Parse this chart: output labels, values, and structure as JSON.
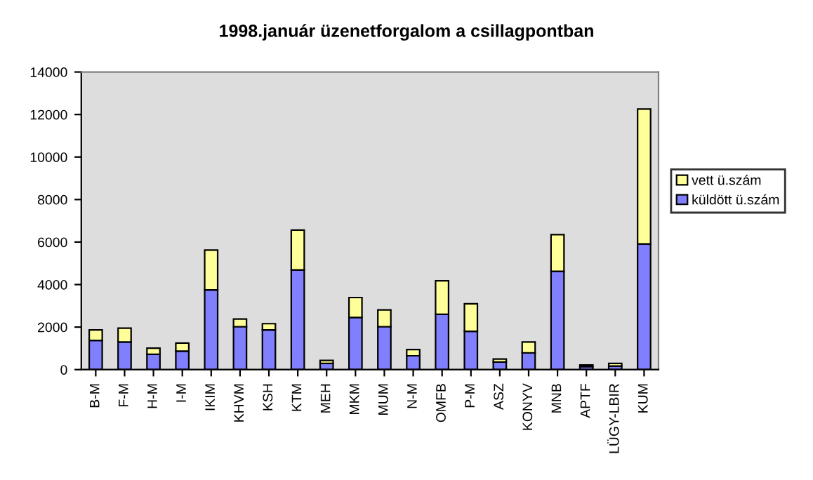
{
  "chart_data": {
    "type": "bar",
    "title": "1998.január üzenetforgalom a csillagpontban",
    "stacked": true,
    "legend": "right",
    "grid": false,
    "categories": [
      "B-M",
      "F-M",
      "H-M",
      "I-M",
      "IKIM",
      "KHVM",
      "KSH",
      "KTM",
      "MEH",
      "MKM",
      "MUM",
      "N-M",
      "OMFB",
      "P-M",
      "ASZ",
      "KONYV",
      "MNB",
      "APTF",
      "LÜGY-LBIR",
      "KUM"
    ],
    "series": [
      {
        "name": "küldött ü.szám",
        "color": "#8080ff",
        "values": [
          1370,
          1300,
          720,
          870,
          3750,
          2020,
          1870,
          4690,
          290,
          2450,
          2020,
          650,
          2600,
          1800,
          360,
          790,
          4620,
          140,
          170,
          5910
        ]
      },
      {
        "name": "vett ü.szám",
        "color": "#ffff99",
        "values": [
          500,
          650,
          290,
          380,
          1870,
          360,
          290,
          1870,
          140,
          940,
          790,
          290,
          1580,
          1300,
          140,
          510,
          1730,
          80,
          120,
          6350
        ]
      }
    ],
    "ylim": [
      0,
      14000
    ],
    "yticks": [
      0,
      2000,
      4000,
      6000,
      8000,
      10000,
      12000,
      14000
    ]
  }
}
